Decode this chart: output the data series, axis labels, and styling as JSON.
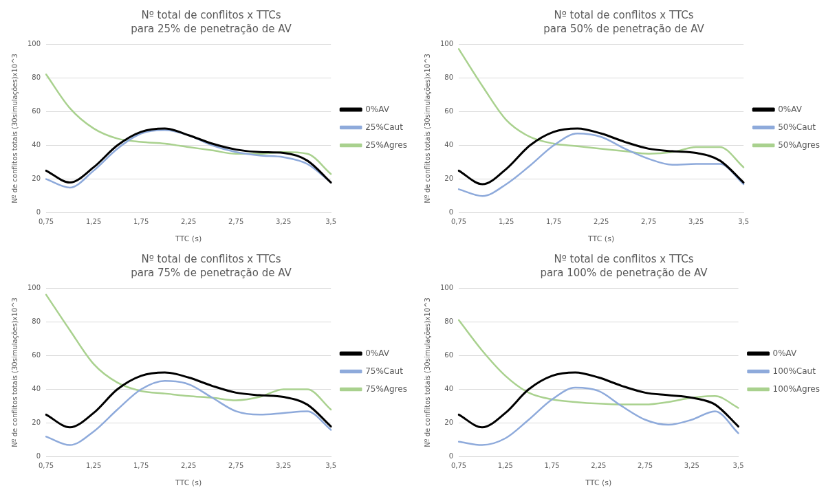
{
  "chart_data": [
    {
      "type": "line",
      "title": "Nº total de conflitos x TTCs",
      "subtitle": "para 25% de penetração de AV",
      "xlabel": "TTC (s)",
      "ylabel": "Nº de conflitos totais (30simulações)x10^3",
      "categories": [
        "0,75",
        null,
        "1,25",
        null,
        "1,75",
        null,
        "2,25",
        null,
        "2,75",
        null,
        "3,25",
        null,
        "3,5"
      ],
      "series": [
        {
          "name": "0%AV",
          "color": "#000000",
          "values": [
            25,
            18,
            27,
            40,
            48,
            50,
            46,
            41,
            37.5,
            36,
            35.5,
            31,
            18
          ]
        },
        {
          "name": "25%Caut",
          "color": "#8eaadb",
          "values": [
            20,
            15,
            25,
            38,
            47,
            49,
            46,
            40,
            36,
            34,
            33,
            29,
            18
          ]
        },
        {
          "name": "25%Agres",
          "color": "#a9d18e",
          "values": [
            82,
            62,
            50,
            44,
            42,
            41,
            39,
            37,
            35,
            35,
            36,
            35,
            23
          ]
        }
      ],
      "ylim": [
        0,
        100
      ],
      "yticks": [
        0,
        20,
        40,
        60,
        80,
        100
      ],
      "grid": "y",
      "legend": "right",
      "marker": "none",
      "line_style": "solid"
    },
    {
      "type": "line",
      "title": "Nº total de conflitos x TTCs",
      "subtitle": "para 50% de penetração de AV",
      "xlabel": "TTC (s)",
      "ylabel": "Nº de conflitos totais (30simulações)x10^3",
      "categories": [
        "0,75",
        null,
        "1,25",
        null,
        "1,75",
        null,
        "2,25",
        null,
        "2,75",
        null,
        "3,25",
        null,
        "3,5"
      ],
      "series": [
        {
          "name": "0%AV",
          "color": "#000000",
          "values": [
            25,
            17,
            26,
            40,
            48,
            50,
            47,
            42,
            38,
            36.5,
            35.5,
            31,
            18
          ]
        },
        {
          "name": "50%Caut",
          "color": "#8eaadb",
          "values": [
            14,
            10,
            17,
            28,
            40,
            47,
            45,
            38,
            32,
            28.5,
            29,
            29,
            17
          ]
        },
        {
          "name": "50%Agres",
          "color": "#a9d18e",
          "values": [
            97,
            75,
            55,
            45,
            41,
            39.5,
            38,
            36.5,
            35,
            36,
            39,
            39,
            27
          ]
        }
      ],
      "ylim": [
        0,
        100
      ],
      "yticks": [
        0,
        20,
        40,
        60,
        80,
        100
      ],
      "grid": "y",
      "legend": "right",
      "marker": "none",
      "line_style": "solid"
    },
    {
      "type": "line",
      "title": "Nº total de conflitos x TTCs",
      "subtitle": "para 75% de penetração de AV",
      "xlabel": "TTC (s)",
      "ylabel": "Nº de conflitos totais (30simulações)x10^3",
      "categories": [
        "0,75",
        null,
        "1,25",
        null,
        "1,75",
        null,
        "2,25",
        null,
        "2,75",
        null,
        "3,25",
        null,
        "3,5"
      ],
      "series": [
        {
          "name": "0%AV",
          "color": "#000000",
          "values": [
            25,
            17.5,
            26,
            40,
            48,
            50,
            47,
            42,
            38,
            36.5,
            35.5,
            31,
            18
          ]
        },
        {
          "name": "75%Caut",
          "color": "#8eaadb",
          "values": [
            12,
            7,
            15,
            28,
            40,
            45,
            43,
            35,
            27,
            25,
            26,
            27,
            16
          ]
        },
        {
          "name": "75%Agres",
          "color": "#a9d18e",
          "values": [
            96,
            75,
            55,
            44,
            39,
            37.5,
            36,
            35,
            33.5,
            35.5,
            40,
            40,
            28
          ]
        }
      ],
      "ylim": [
        0,
        100
      ],
      "yticks": [
        0,
        20,
        40,
        60,
        80,
        100
      ],
      "grid": "y",
      "legend": "right",
      "marker": "none",
      "line_style": "solid"
    },
    {
      "type": "line",
      "title": "Nº total de conflitos x TTCs",
      "subtitle": "para 100% de penetração de AV",
      "xlabel": "TTC (s)",
      "ylabel": "Nº de conflitos totais (30simulações)x10^3",
      "categories": [
        "0,75",
        null,
        "1,25",
        null,
        "1,75",
        null,
        "2,25",
        null,
        "2,75",
        null,
        "3,25",
        null,
        "3,5"
      ],
      "series": [
        {
          "name": "0%AV",
          "color": "#000000",
          "values": [
            25,
            17.5,
            26,
            40,
            48,
            50,
            47,
            42,
            38,
            36.5,
            35,
            31,
            18
          ]
        },
        {
          "name": "100%Caut",
          "color": "#8eaadb",
          "values": [
            9,
            7,
            11,
            22,
            34,
            41,
            39,
            30,
            22,
            19,
            22,
            27,
            14
          ]
        },
        {
          "name": "100%Agres",
          "color": "#a9d18e",
          "values": [
            81,
            63,
            48,
            38,
            34,
            32.5,
            31.5,
            31,
            31,
            32.5,
            35,
            36,
            29
          ]
        }
      ],
      "ylim": [
        0,
        100
      ],
      "yticks": [
        0,
        20,
        40,
        60,
        80,
        100
      ],
      "grid": "y",
      "legend": "right",
      "marker": "none",
      "line_style": "solid"
    }
  ]
}
